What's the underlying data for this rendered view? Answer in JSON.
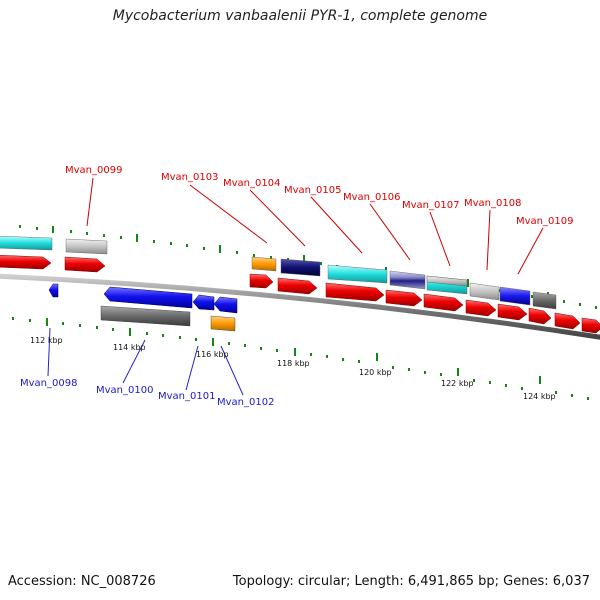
{
  "title": "Mycobacterium vanbaalenii PYR-1, complete genome",
  "footer": {
    "accession": "Accession: NC_008726",
    "summary": "Topology: circular; Length: 6,491,865 bp; Genes: 6,037"
  },
  "colors": {
    "forward_label": "#dd0000",
    "reverse_label": "#1a1acc",
    "tick": "#118811",
    "backbone": "#7a7a7a",
    "forward_cds": "#ee0000",
    "reverse_cds": "#1111ee"
  },
  "scale_labels": [
    "112 kbp",
    "114 kbp",
    "116 kbp",
    "118 kbp",
    "120 kbp",
    "122 kbp",
    "124 kbp"
  ],
  "forward_labels": [
    "Mvan_0099",
    "Mvan_0103",
    "Mvan_0104",
    "Mvan_0105",
    "Mvan_0106",
    "Mvan_0107",
    "Mvan_0108",
    "Mvan_0109"
  ],
  "reverse_labels": [
    "Mvan_0098",
    "Mvan_0100",
    "Mvan_0101",
    "Mvan_0102"
  ]
}
